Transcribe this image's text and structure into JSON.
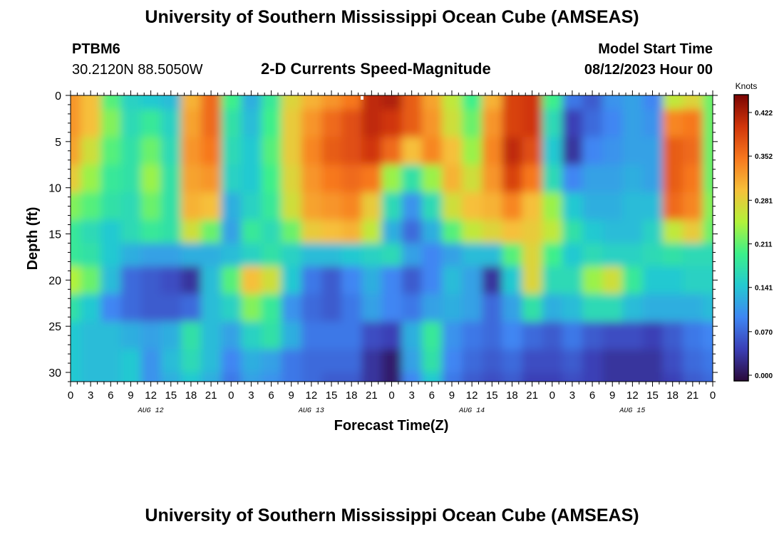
{
  "header": {
    "title": "University of Southern Mississippi Ocean Cube (AMSEAS)",
    "station_id": "PTBM6",
    "coords": "30.2120N  88.5050W",
    "chart_title": "2-D Currents Speed-Magnitude",
    "start_label": "Model Start Time",
    "start_value": "08/12/2023 Hour 00"
  },
  "footer": {
    "title": "University of Southern Mississippi Ocean Cube (AMSEAS)"
  },
  "chart_data": {
    "type": "heatmap",
    "title": "2-D Currents Speed-Magnitude",
    "xlabel": "Forecast Time(Z)",
    "ylabel": "Depth (ft)",
    "x_ticks": [
      "0",
      "3",
      "6",
      "9",
      "12",
      "15",
      "18",
      "21",
      "0",
      "3",
      "6",
      "9",
      "12",
      "15",
      "18",
      "21",
      "0",
      "3",
      "6",
      "9",
      "12",
      "15",
      "18",
      "21",
      "0",
      "3",
      "6",
      "9",
      "12",
      "15",
      "18",
      "21",
      "0"
    ],
    "x_hours_range": [
      0,
      96
    ],
    "day_labels": [
      {
        "label": "AUG 12",
        "hour": 12
      },
      {
        "label": "AUG 13",
        "hour": 36
      },
      {
        "label": "AUG 14",
        "hour": 60
      },
      {
        "label": "AUG 15",
        "hour": 84
      }
    ],
    "y_ticks": [
      0,
      5,
      10,
      15,
      20,
      25,
      30
    ],
    "ylim": [
      0,
      31
    ],
    "y_inverted": true,
    "colorbar": {
      "units": "Knots",
      "ticks": [
        0.0,
        0.07,
        0.141,
        0.211,
        0.281,
        0.352,
        0.422
      ],
      "tick_labels": [
        "0.000",
        "0.070",
        "0.141",
        "0.211",
        "0.281",
        "0.352",
        "0.422"
      ],
      "range": [
        0,
        0.45
      ],
      "colors": [
        "#2b0a3a",
        "#3b3fb6",
        "#3f86f3",
        "#24c9d1",
        "#3cf08a",
        "#b2f23a",
        "#f6c03a",
        "#f7781e",
        "#d0350a",
        "#7a0403"
      ]
    },
    "depths_ft": [
      0,
      3,
      6,
      9,
      12,
      15,
      17,
      20,
      23,
      26,
      29,
      31
    ],
    "hours": [
      0,
      3,
      6,
      9,
      12,
      15,
      18,
      21,
      24,
      27,
      30,
      33,
      36,
      39,
      42,
      45,
      48,
      51,
      54,
      57,
      60,
      63,
      66,
      69,
      72,
      75,
      78,
      81,
      84,
      87,
      90,
      93,
      96
    ],
    "speed_knots": [
      [
        0.33,
        0.3,
        0.21,
        0.16,
        0.15,
        0.14,
        0.31,
        0.36,
        0.2,
        0.13,
        0.19,
        0.28,
        0.31,
        0.33,
        0.35,
        0.41,
        0.42,
        0.37,
        0.32,
        0.26,
        0.2,
        0.31,
        0.39,
        0.4,
        0.2,
        0.09,
        0.07,
        0.11,
        0.12,
        0.1,
        0.26,
        0.28,
        0.22
      ],
      [
        0.33,
        0.3,
        0.23,
        0.17,
        0.19,
        0.16,
        0.32,
        0.36,
        0.18,
        0.14,
        0.2,
        0.29,
        0.33,
        0.36,
        0.38,
        0.41,
        0.4,
        0.37,
        0.33,
        0.27,
        0.22,
        0.33,
        0.39,
        0.4,
        0.17,
        0.05,
        0.08,
        0.1,
        0.12,
        0.11,
        0.34,
        0.35,
        0.22
      ],
      [
        0.32,
        0.27,
        0.21,
        0.18,
        0.22,
        0.17,
        0.33,
        0.35,
        0.17,
        0.15,
        0.21,
        0.29,
        0.34,
        0.37,
        0.38,
        0.4,
        0.36,
        0.3,
        0.34,
        0.3,
        0.24,
        0.34,
        0.41,
        0.38,
        0.15,
        0.04,
        0.1,
        0.11,
        0.12,
        0.12,
        0.37,
        0.36,
        0.22
      ],
      [
        0.29,
        0.24,
        0.19,
        0.18,
        0.24,
        0.18,
        0.32,
        0.33,
        0.16,
        0.15,
        0.2,
        0.28,
        0.33,
        0.35,
        0.36,
        0.35,
        0.24,
        0.18,
        0.24,
        0.31,
        0.27,
        0.33,
        0.39,
        0.35,
        0.17,
        0.1,
        0.12,
        0.12,
        0.13,
        0.12,
        0.37,
        0.35,
        0.22
      ],
      [
        0.23,
        0.21,
        0.18,
        0.17,
        0.22,
        0.18,
        0.31,
        0.3,
        0.13,
        0.16,
        0.19,
        0.27,
        0.32,
        0.33,
        0.34,
        0.29,
        0.17,
        0.11,
        0.17,
        0.27,
        0.3,
        0.31,
        0.34,
        0.3,
        0.24,
        0.15,
        0.13,
        0.13,
        0.14,
        0.14,
        0.36,
        0.34,
        0.23
      ],
      [
        0.19,
        0.17,
        0.15,
        0.17,
        0.19,
        0.18,
        0.27,
        0.22,
        0.12,
        0.19,
        0.17,
        0.22,
        0.29,
        0.3,
        0.31,
        0.26,
        0.13,
        0.08,
        0.13,
        0.21,
        0.26,
        0.28,
        0.3,
        0.29,
        0.26,
        0.18,
        0.15,
        0.14,
        0.14,
        0.16,
        0.26,
        0.29,
        0.22
      ],
      [
        0.19,
        0.18,
        0.15,
        0.13,
        0.12,
        0.12,
        0.13,
        0.13,
        0.14,
        0.16,
        0.18,
        0.16,
        0.14,
        0.14,
        0.15,
        0.16,
        0.17,
        0.12,
        0.1,
        0.12,
        0.14,
        0.14,
        0.21,
        0.28,
        0.2,
        0.15,
        0.17,
        0.16,
        0.16,
        0.17,
        0.18,
        0.17,
        0.17
      ],
      [
        0.25,
        0.22,
        0.14,
        0.08,
        0.07,
        0.06,
        0.04,
        0.14,
        0.21,
        0.3,
        0.27,
        0.15,
        0.09,
        0.07,
        0.1,
        0.13,
        0.1,
        0.07,
        0.1,
        0.14,
        0.12,
        0.04,
        0.15,
        0.28,
        0.17,
        0.17,
        0.24,
        0.27,
        0.19,
        0.15,
        0.15,
        0.16,
        0.16
      ],
      [
        0.18,
        0.15,
        0.1,
        0.08,
        0.07,
        0.07,
        0.08,
        0.14,
        0.16,
        0.23,
        0.19,
        0.11,
        0.08,
        0.07,
        0.09,
        0.12,
        0.1,
        0.09,
        0.12,
        0.13,
        0.12,
        0.08,
        0.12,
        0.18,
        0.13,
        0.14,
        0.17,
        0.17,
        0.14,
        0.13,
        0.13,
        0.13,
        0.14
      ],
      [
        0.15,
        0.14,
        0.14,
        0.13,
        0.12,
        0.13,
        0.18,
        0.14,
        0.12,
        0.16,
        0.18,
        0.13,
        0.09,
        0.09,
        0.09,
        0.06,
        0.05,
        0.13,
        0.19,
        0.11,
        0.09,
        0.08,
        0.1,
        0.08,
        0.07,
        0.09,
        0.07,
        0.06,
        0.06,
        0.05,
        0.07,
        0.09,
        0.1
      ],
      [
        0.15,
        0.14,
        0.14,
        0.15,
        0.11,
        0.14,
        0.17,
        0.14,
        0.1,
        0.13,
        0.12,
        0.09,
        0.08,
        0.08,
        0.08,
        0.04,
        0.02,
        0.12,
        0.18,
        0.1,
        0.08,
        0.07,
        0.08,
        0.06,
        0.06,
        0.07,
        0.05,
        0.04,
        0.04,
        0.04,
        0.06,
        0.08,
        0.09
      ],
      [
        0.15,
        0.14,
        0.14,
        0.15,
        0.11,
        0.13,
        0.15,
        0.13,
        0.09,
        0.12,
        0.11,
        0.09,
        0.08,
        0.07,
        0.07,
        0.04,
        0.02,
        0.1,
        0.15,
        0.09,
        0.07,
        0.06,
        0.07,
        0.05,
        0.05,
        0.06,
        0.05,
        0.04,
        0.04,
        0.04,
        0.05,
        0.07,
        0.08
      ]
    ]
  }
}
